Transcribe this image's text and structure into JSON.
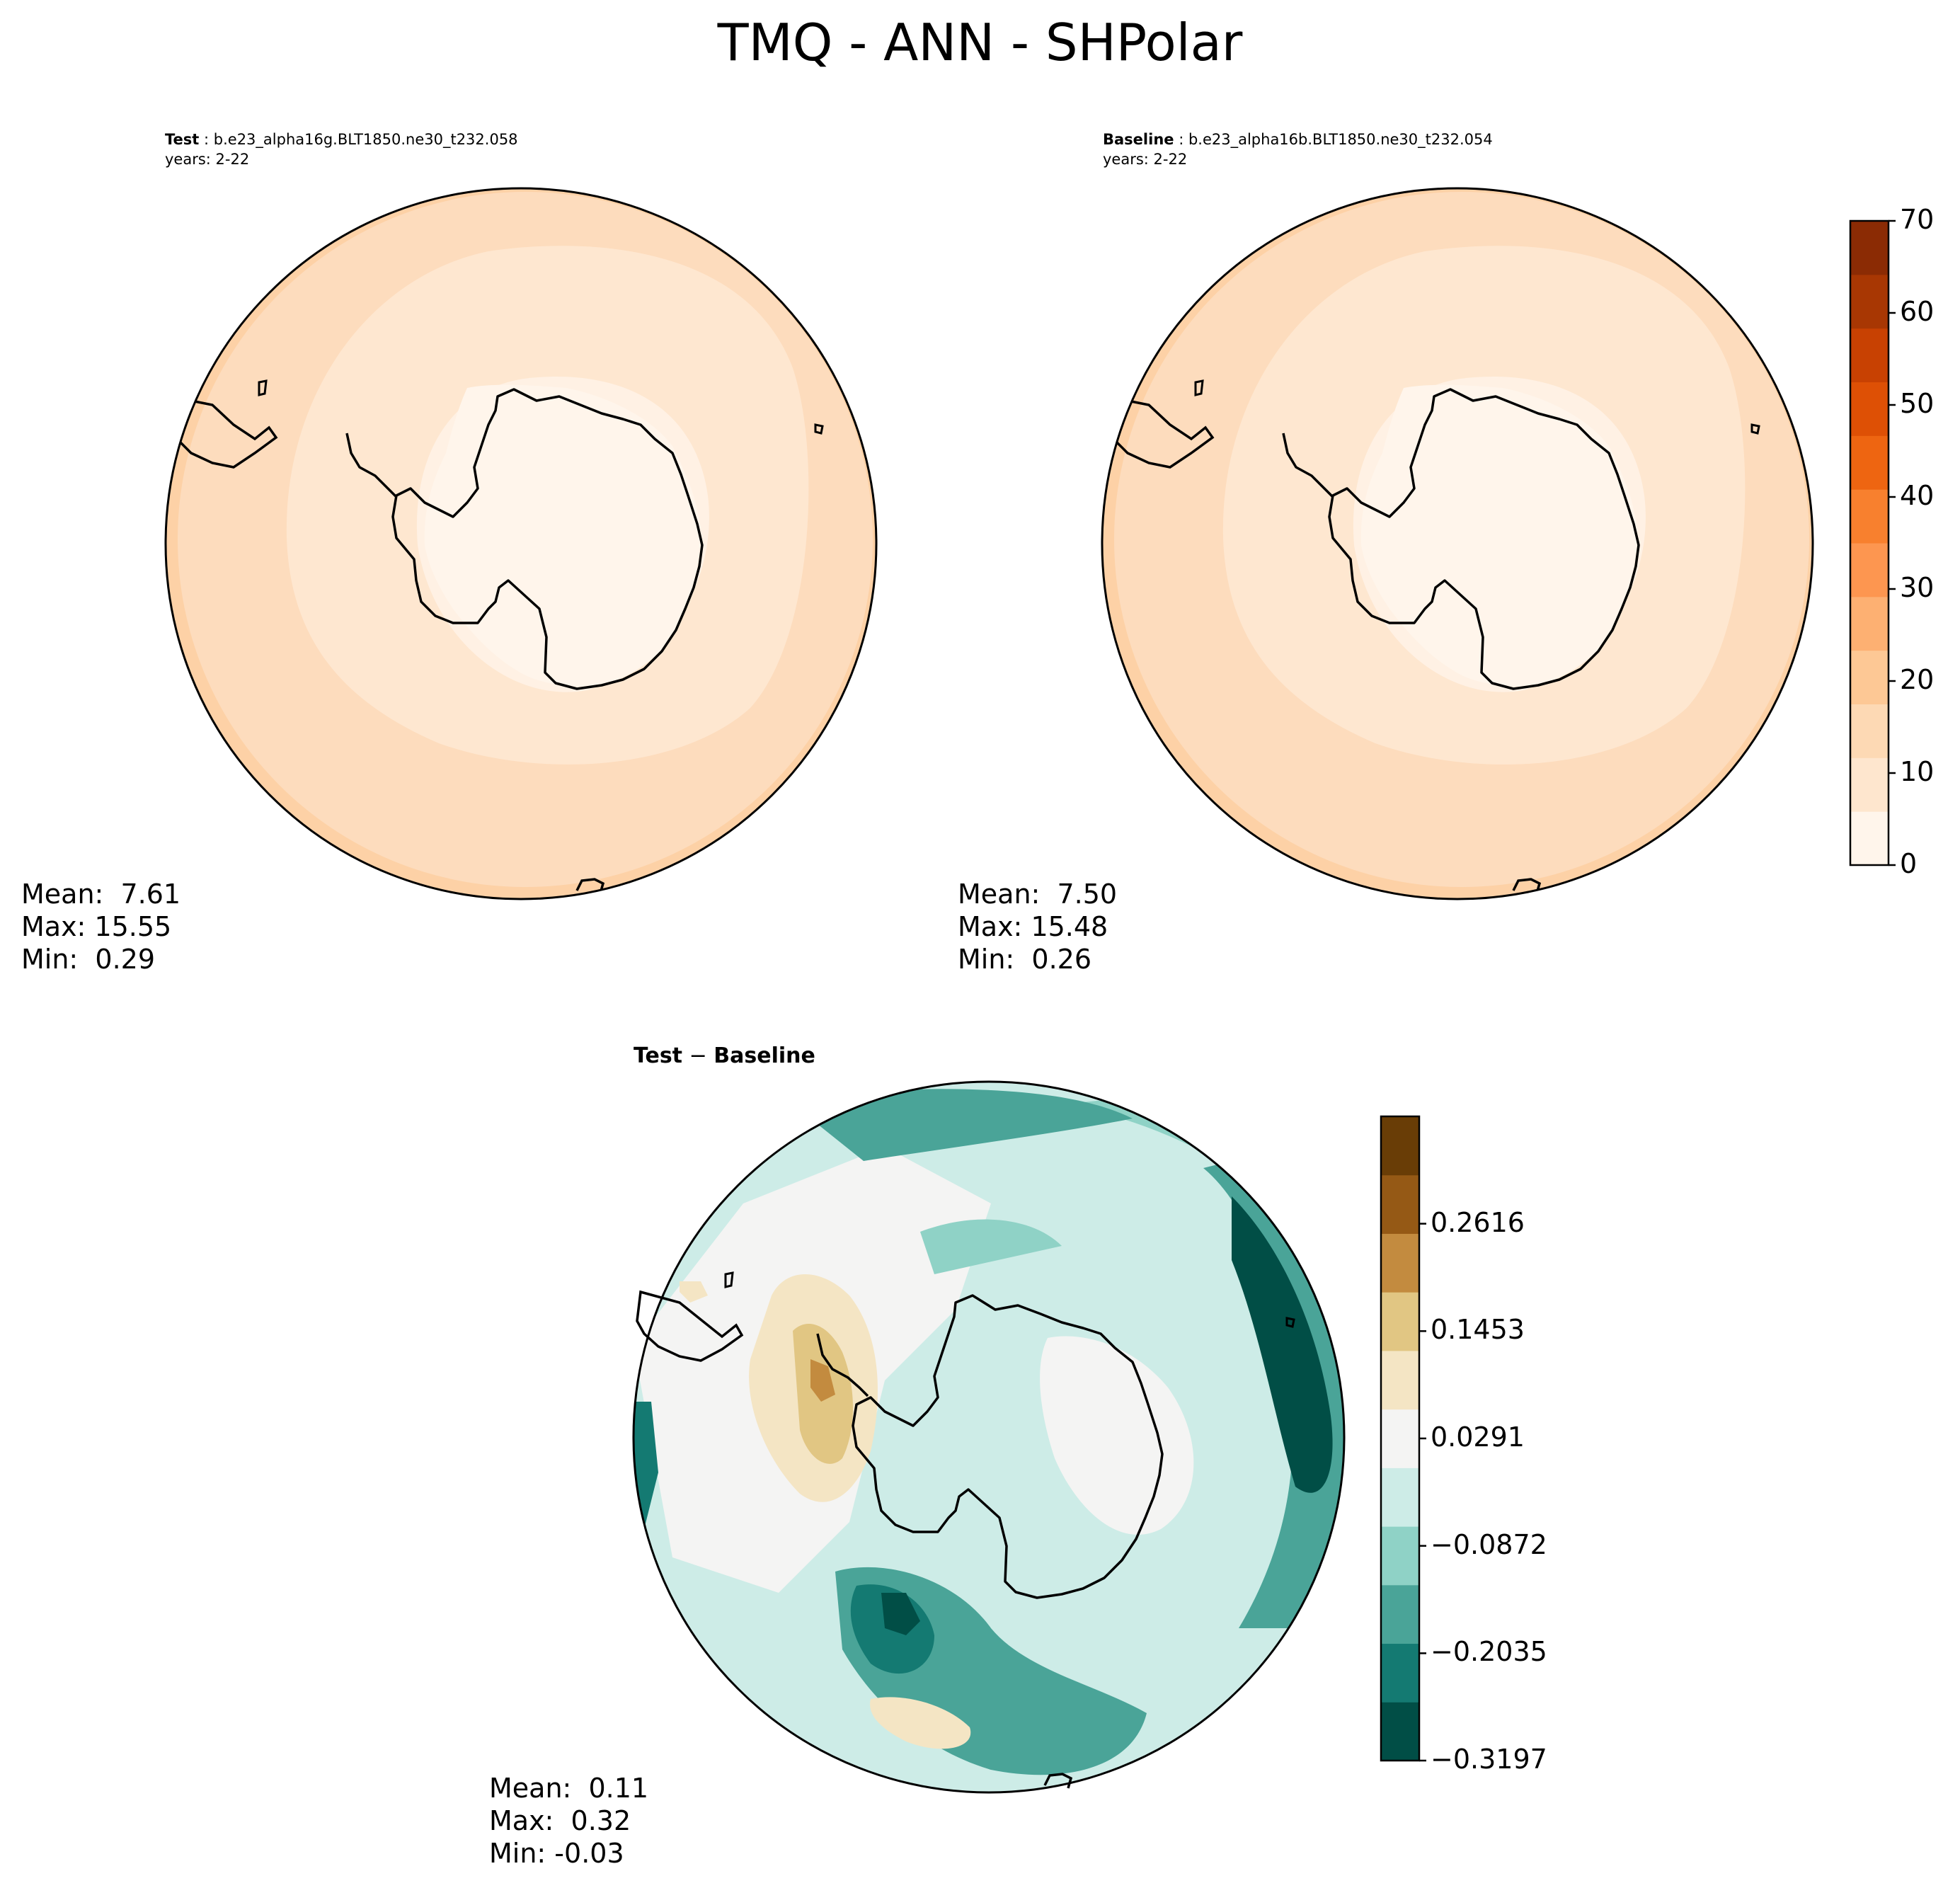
{
  "figure_title": "TMQ - ANN - SHPolar",
  "test_panel": {
    "label": "Test",
    "case": "b.e23_alpha16g.BLT1850.ne30_t232.058",
    "years": "years: 2-22",
    "stats": {
      "mean": "Mean:  7.61",
      "max": "Max: 15.55",
      "min": "Min:  0.29"
    }
  },
  "baseline_panel": {
    "label": "Baseline",
    "case": "b.e23_alpha16b.BLT1850.ne30_t232.054",
    "years": "years: 2-22",
    "stats": {
      "mean": "Mean:  7.50",
      "max": "Max: 15.48",
      "min": "Min:  0.26"
    }
  },
  "diff_panel": {
    "title_left": "Test",
    "title_sep": " − ",
    "title_right": "Baseline",
    "stats": {
      "mean": "Mean:  0.11",
      "max": "Max:  0.32",
      "min": "Min: -0.03"
    }
  },
  "abs_colorbar": {
    "ticks": [
      "0",
      "10",
      "20",
      "30",
      "40",
      "50",
      "60",
      "70"
    ],
    "colors": [
      "#fff5eb",
      "#fee6ce",
      "#fdd9b4",
      "#fdc895",
      "#fdb072",
      "#fd9650",
      "#f8802e",
      "#ee6511",
      "#de5005",
      "#c84102",
      "#a83703",
      "#8b2b04"
    ]
  },
  "diff_colorbar": {
    "ticks": [
      "0.2616",
      "0.1453",
      "0.0291",
      "−0.0872",
      "−0.2035",
      "−0.3197"
    ],
    "colors": [
      "#014e46",
      "#147a72",
      "#4aa498",
      "#8fd2c6",
      "#cdece7",
      "#f4f4f3",
      "#f4e5c4",
      "#e1c683",
      "#c38b3f",
      "#955915",
      "#693d06"
    ]
  },
  "map_colors": {
    "abs_outer": "#fddcbd",
    "abs_middle": "#fee7d0",
    "abs_inner": "#fff1e4",
    "abs_rim": "#fdd1a6",
    "coast": "#000000"
  }
}
